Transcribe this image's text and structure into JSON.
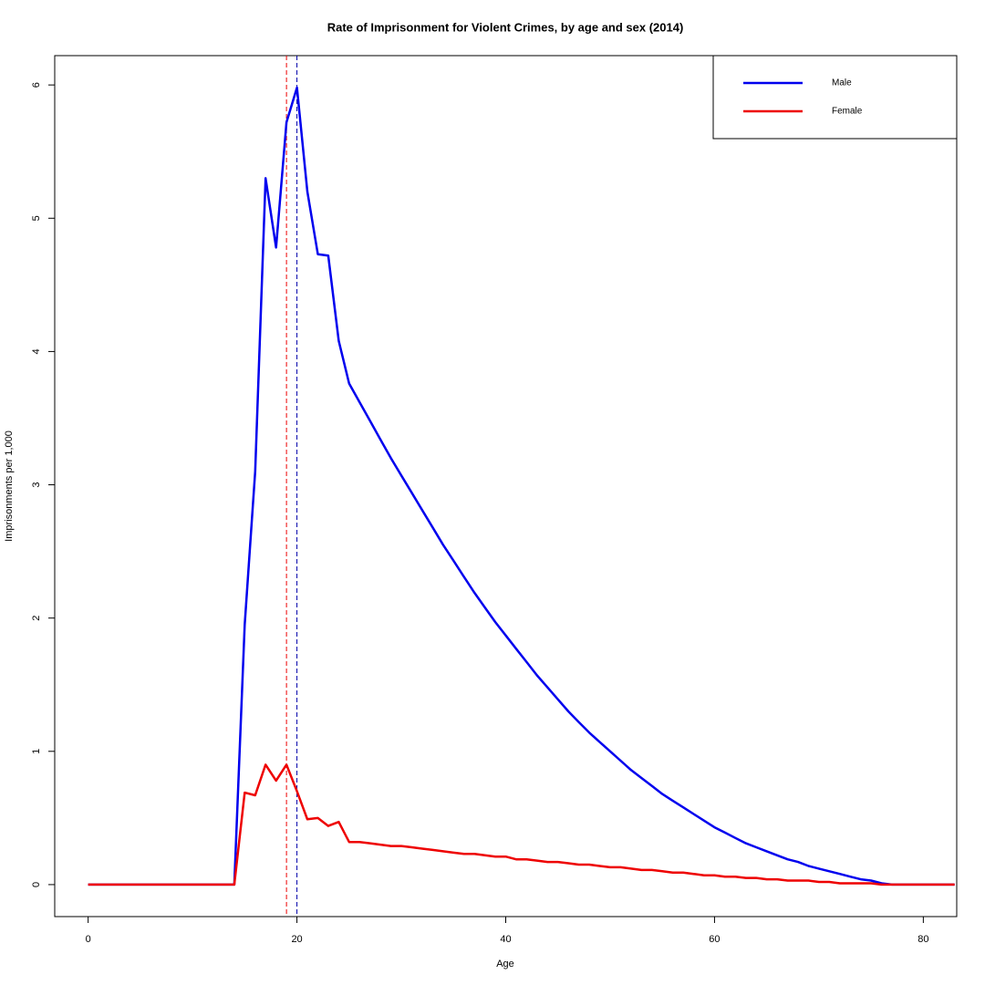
{
  "chart_data": {
    "type": "line",
    "title": "Rate of Imprisonment for Violent Crimes, by age and sex (2014)",
    "x_label": "Age",
    "y_label": "Imprisonments per 1,000",
    "x": [
      0,
      1,
      2,
      3,
      4,
      5,
      6,
      7,
      8,
      9,
      10,
      11,
      12,
      13,
      14,
      15,
      16,
      17,
      18,
      19,
      20,
      21,
      22,
      23,
      24,
      25,
      26,
      27,
      28,
      29,
      30,
      31,
      32,
      33,
      34,
      35,
      36,
      37,
      38,
      39,
      40,
      41,
      42,
      43,
      44,
      45,
      46,
      47,
      48,
      49,
      50,
      51,
      52,
      53,
      54,
      55,
      56,
      57,
      58,
      59,
      60,
      61,
      62,
      63,
      64,
      65,
      66,
      67,
      68,
      69,
      70,
      71,
      72,
      73,
      74,
      75,
      76,
      77,
      78,
      79,
      80,
      81,
      82,
      83
    ],
    "series": [
      {
        "name": "Male",
        "color": "#0000ee",
        "values": [
          0,
          0,
          0,
          0,
          0,
          0,
          0,
          0,
          0,
          0,
          0,
          0,
          0,
          0,
          0,
          1.95,
          3.1,
          5.3,
          4.78,
          5.72,
          5.98,
          5.2,
          4.73,
          4.72,
          4.08,
          3.76,
          3.62,
          3.48,
          3.34,
          3.2,
          3.07,
          2.94,
          2.81,
          2.68,
          2.55,
          2.43,
          2.31,
          2.19,
          2.08,
          1.97,
          1.87,
          1.77,
          1.67,
          1.57,
          1.48,
          1.39,
          1.3,
          1.22,
          1.14,
          1.07,
          1.0,
          0.93,
          0.86,
          0.8,
          0.74,
          0.68,
          0.63,
          0.58,
          0.53,
          0.48,
          0.43,
          0.39,
          0.35,
          0.31,
          0.28,
          0.25,
          0.22,
          0.19,
          0.17,
          0.14,
          0.12,
          0.1,
          0.08,
          0.06,
          0.04,
          0.03,
          0.01,
          0,
          0,
          0,
          0,
          0,
          0,
          0
        ]
      },
      {
        "name": "Female",
        "color": "#ee0000",
        "values": [
          0,
          0,
          0,
          0,
          0,
          0,
          0,
          0,
          0,
          0,
          0,
          0,
          0,
          0,
          0,
          0.69,
          0.67,
          0.9,
          0.78,
          0.9,
          0.7,
          0.49,
          0.5,
          0.44,
          0.47,
          0.32,
          0.32,
          0.31,
          0.3,
          0.29,
          0.29,
          0.28,
          0.27,
          0.26,
          0.25,
          0.24,
          0.23,
          0.23,
          0.22,
          0.21,
          0.21,
          0.19,
          0.19,
          0.18,
          0.17,
          0.17,
          0.16,
          0.15,
          0.15,
          0.14,
          0.13,
          0.13,
          0.12,
          0.11,
          0.11,
          0.1,
          0.09,
          0.09,
          0.08,
          0.07,
          0.07,
          0.06,
          0.06,
          0.05,
          0.05,
          0.04,
          0.04,
          0.03,
          0.03,
          0.03,
          0.02,
          0.02,
          0.01,
          0.01,
          0.01,
          0.01,
          0,
          0,
          0,
          0,
          0,
          0,
          0,
          0
        ]
      }
    ],
    "vlines": [
      {
        "value": 19,
        "color": "#ee0000"
      },
      {
        "value": 20,
        "color": "#0000aa"
      }
    ],
    "xlim": [
      -3.2,
      83.2
    ],
    "xticks": [
      0,
      20,
      40,
      60,
      80
    ],
    "ylim": [
      -0.24,
      6.22
    ],
    "yticks": [
      0,
      1,
      2,
      3,
      4,
      5,
      6
    ],
    "legend": "top-right"
  }
}
